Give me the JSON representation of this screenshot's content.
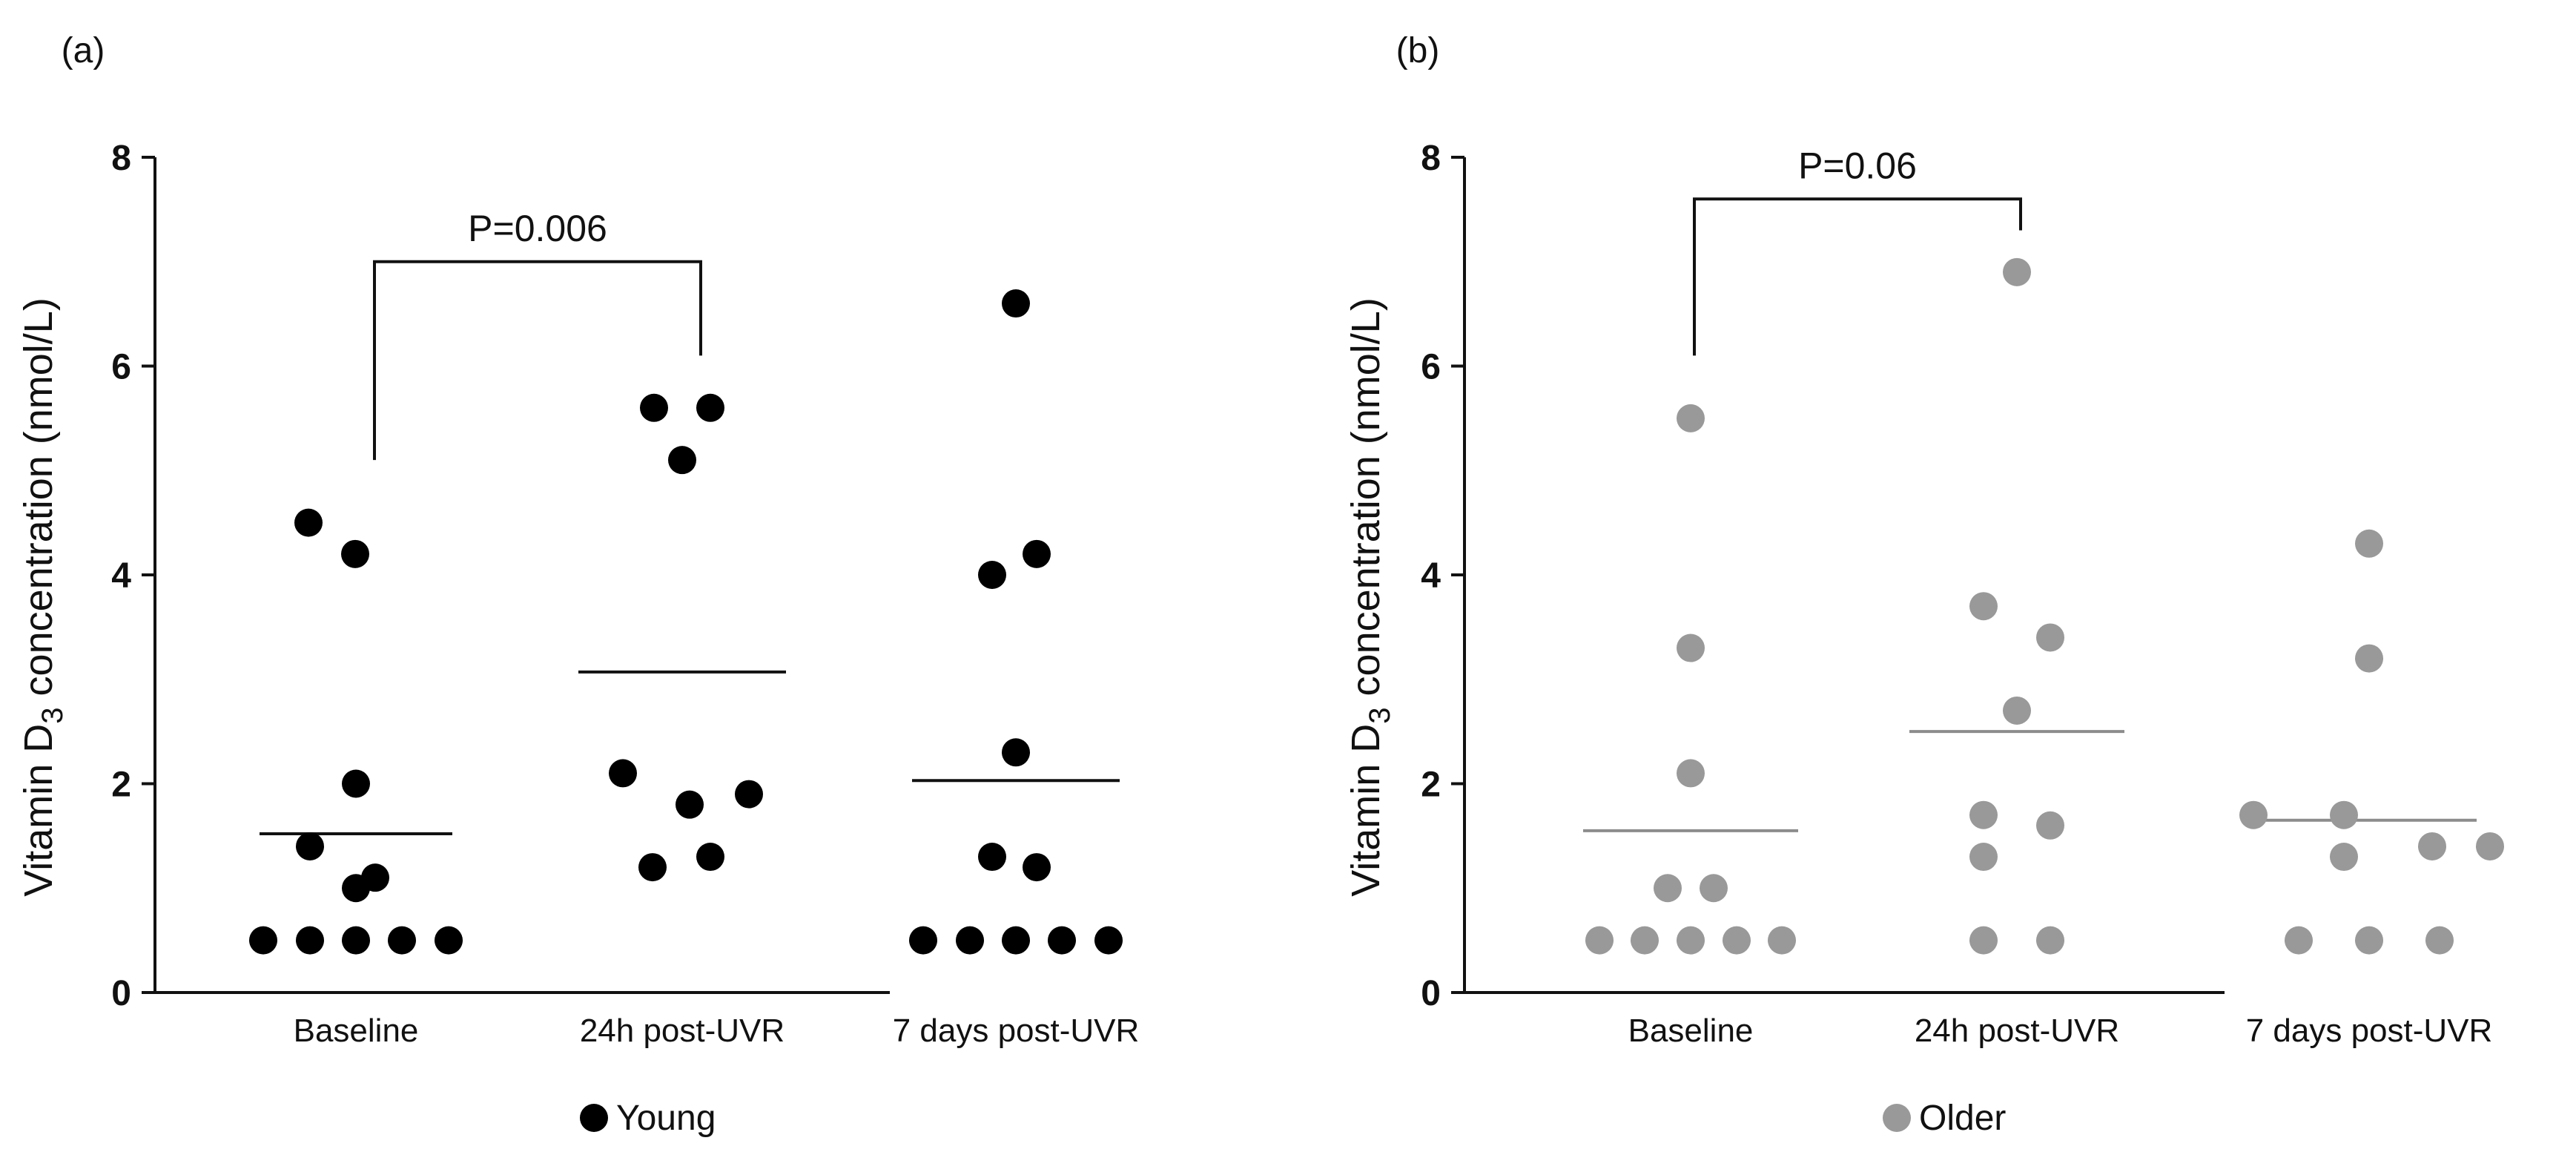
{
  "chart_data": [
    {
      "type": "scatter",
      "panel_label": "(a)",
      "ylabel_main": "Vitamin D",
      "ylabel_sub": "3",
      "ylabel_tail": " concentration (nmol/L)",
      "ylim": [
        0,
        8
      ],
      "yticks": [
        "0",
        "2",
        "4",
        "6",
        "8"
      ],
      "categories": [
        "Baseline",
        "24h post-UVR",
        "7 days post-UVR"
      ],
      "legend": "Young",
      "color": "#000000",
      "series": [
        {
          "name": "Baseline",
          "values": [
            4.5,
            4.2,
            2.0,
            1.4,
            1.1,
            1.0,
            0.5,
            0.5,
            0.5,
            0.5,
            0.5
          ],
          "mean": 1.52
        },
        {
          "name": "24h post-UVR",
          "values": [
            5.6,
            5.6,
            5.1,
            2.1,
            1.9,
            1.8,
            1.3,
            1.2
          ],
          "mean": 3.07
        },
        {
          "name": "7 days post-UVR",
          "values": [
            6.6,
            4.2,
            4.0,
            2.3,
            1.3,
            1.2,
            0.5,
            0.5,
            0.5,
            0.5,
            0.5
          ],
          "mean": 2.03
        }
      ],
      "annotation": {
        "text": "P=0.006",
        "from": "Baseline",
        "to": "24h post-UVR",
        "bracket_top": 7.0,
        "left_end": 5.1,
        "right_end": 6.1
      }
    },
    {
      "type": "scatter",
      "panel_label": "(b)",
      "ylabel_main": "Vitamin D",
      "ylabel_sub": "3",
      "ylabel_tail": " concentration (nmol/L)",
      "ylim": [
        0,
        8
      ],
      "yticks": [
        "0",
        "2",
        "4",
        "6",
        "8"
      ],
      "categories": [
        "Baseline",
        "24h post-UVR",
        "7 days post-UVR"
      ],
      "legend": "Older",
      "color": "#999999",
      "series": [
        {
          "name": "Baseline",
          "values": [
            5.5,
            3.3,
            2.1,
            1.0,
            1.0,
            0.5,
            0.5,
            0.5,
            0.5,
            0.5
          ],
          "mean": 1.55
        },
        {
          "name": "24h post-UVR",
          "values": [
            6.9,
            3.7,
            3.4,
            2.7,
            1.7,
            1.6,
            1.3,
            0.5,
            0.5
          ],
          "mean": 2.5
        },
        {
          "name": "7 days post-UVR",
          "values": [
            4.3,
            3.2,
            1.7,
            1.7,
            1.4,
            1.4,
            1.3,
            0.5,
            0.5,
            0.5
          ],
          "mean": 1.65
        }
      ],
      "annotation": {
        "text": "P=0.06",
        "from": "Baseline",
        "to": "24h post-UVR",
        "bracket_top": 7.6,
        "left_end": 6.1,
        "right_end": 7.3
      }
    }
  ]
}
